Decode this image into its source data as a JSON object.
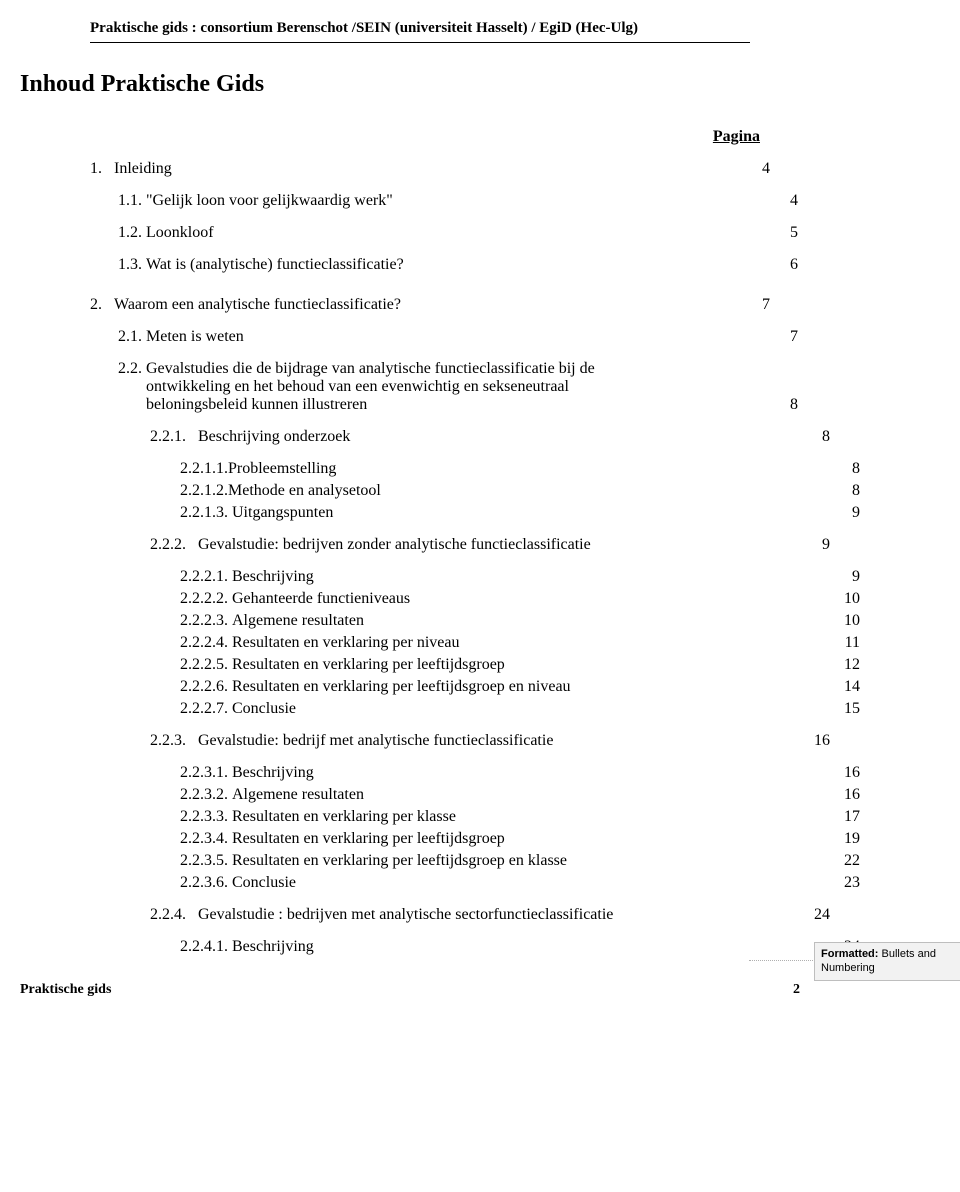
{
  "header": "Praktische gids : consortium Berenschot /SEIN (universiteit Hasselt) / EgiD (Hec-Ulg)",
  "title": "Inhoud Praktische Gids",
  "paginaLabel": "Pagina",
  "toc": {
    "r1": {
      "num": "1.",
      "text": "Inleiding",
      "page": "4"
    },
    "r2": {
      "num": "1.1.",
      "text": "Gelijk loon voor gelijkwaardig werk\"",
      "page": "4"
    },
    "r3": {
      "num": "1.2.",
      "text": "Loonkloof",
      "page": "5"
    },
    "r4": {
      "num": "1.3.",
      "text": "Wat is (analytische) functieclassificatie?",
      "page": "6"
    },
    "r5": {
      "num": "2.",
      "text": "Waarom een analytische functieclassificatie?",
      "page": "7"
    },
    "r6": {
      "num": "2.1.",
      "text": "Meten is weten",
      "page": "7"
    },
    "r7": {
      "num": "2.2.",
      "text": "Gevalstudies die de bijdrage van analytische functieclassificatie bij de ontwikkeling en het behoud van een evenwichtig en sekseneutraal beloningsbeleid kunnen illustreren",
      "page": "8"
    },
    "r8": {
      "num": "2.2.1.",
      "text": "Beschrijving onderzoek",
      "page": "8"
    },
    "r9": {
      "num": "2.2.1.1.",
      "text": "Probleemstelling",
      "page": "8"
    },
    "r10": {
      "num": "2.2.1.2.",
      "text": "Methode en analysetool",
      "page": "8"
    },
    "r11": {
      "num": "2.2.1.3.",
      "text": "Uitgangspunten",
      "page": "9"
    },
    "r12": {
      "num": "2.2.2.",
      "text": "Gevalstudie: bedrijven zonder analytische functieclassificatie",
      "page": "9"
    },
    "r13": {
      "num": "2.2.2.1.",
      "text": "Beschrijving",
      "page": "9"
    },
    "r14": {
      "num": "2.2.2.2.",
      "text": "Gehanteerde functieniveaus",
      "page": "10"
    },
    "r15": {
      "num": "2.2.2.3.",
      "text": "Algemene resultaten",
      "page": "10"
    },
    "r16": {
      "num": "2.2.2.4.",
      "text": "Resultaten en verklaring per niveau",
      "page": "11"
    },
    "r17": {
      "num": "2.2.2.5.",
      "text": "Resultaten en verklaring per leeftijdsgroep",
      "page": "12"
    },
    "r18": {
      "num": "2.2.2.6.",
      "text": "Resultaten en verklaring per leeftijdsgroep en niveau",
      "page": "14"
    },
    "r19": {
      "num": "2.2.2.7.",
      "text": "Conclusie",
      "page": "15"
    },
    "r20": {
      "num": "2.2.3.",
      "text": "Gevalstudie: bedrijf met analytische functieclassificatie",
      "page": "16"
    },
    "r21": {
      "num": "2.2.3.1.",
      "text": "Beschrijving",
      "page": "16"
    },
    "r22": {
      "num": "2.2.3.2.",
      "text": "Algemene resultaten",
      "page": "16"
    },
    "r23": {
      "num": "2.2.3.3.",
      "text": "Resultaten en verklaring per klasse",
      "page": "17"
    },
    "r24": {
      "num": "2.2.3.4.",
      "text": "Resultaten en verklaring per leeftijdsgroep",
      "page": "19"
    },
    "r25": {
      "num": "2.2.3.5.",
      "text": "Resultaten en verklaring per leeftijdsgroep en klasse",
      "page": "22"
    },
    "r26": {
      "num": "2.2.3.6.",
      "text": "Conclusie",
      "page": "23"
    },
    "r27": {
      "num": "2.2.4.",
      "text": "Gevalstudie : bedrijven met analytische sectorfunctieclassificatie",
      "page": "24"
    },
    "r28": {
      "num": "2.2.4.1.",
      "text": "Beschrijving",
      "page": "24"
    }
  },
  "comment": {
    "label": "Formatted:",
    "text": " Bullets and Numbering"
  },
  "footer": {
    "left": "Praktische gids",
    "page": "2"
  }
}
